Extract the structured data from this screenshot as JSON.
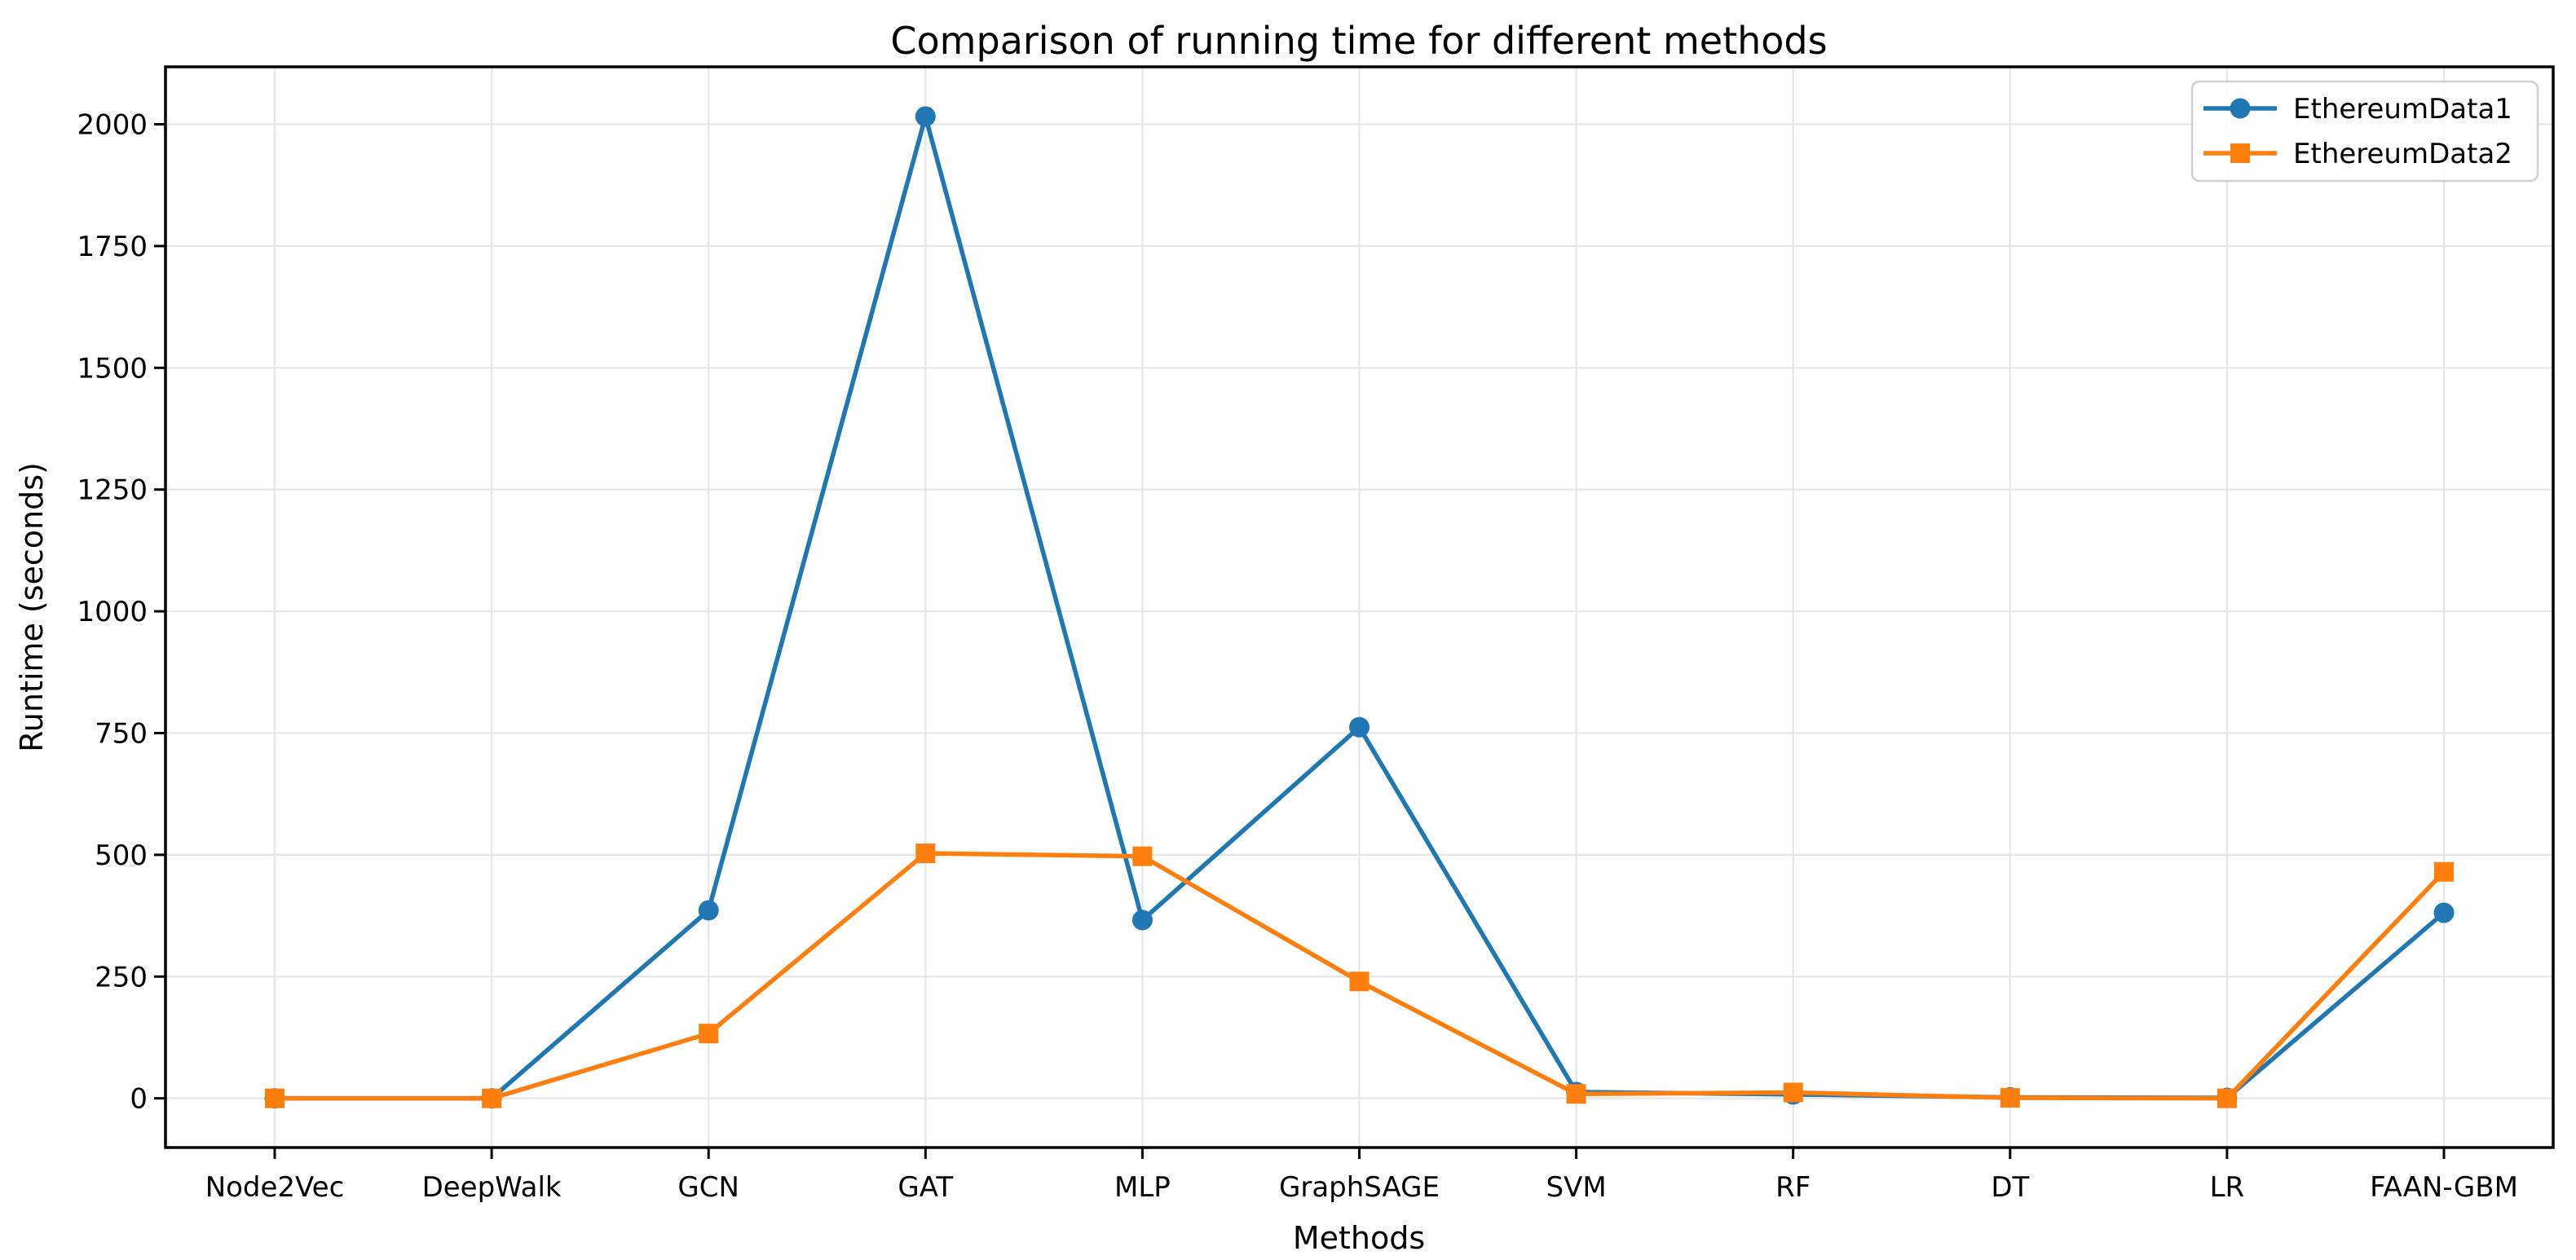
{
  "chart_data": {
    "type": "line",
    "title": "Comparison of running time for different methods",
    "xlabel": "Methods",
    "ylabel": "Runtime (seconds)",
    "categories": [
      "Node2Vec",
      "DeepWalk",
      "GCN",
      "GAT",
      "MLP",
      "GraphSAGE",
      "SVM",
      "RF",
      "DT",
      "LR",
      "FAAN-GBM"
    ],
    "series": [
      {
        "name": "EthereumData1",
        "color": "#1f77b4",
        "marker": "circle",
        "values": [
          0,
          0,
          386,
          2016,
          366,
          762,
          13,
          8,
          2,
          1,
          381
        ]
      },
      {
        "name": "EthereumData2",
        "color": "#ff7f0e",
        "marker": "square",
        "values": [
          0,
          0,
          133,
          503,
          497,
          240,
          9,
          12,
          1,
          0,
          465
        ]
      }
    ],
    "yticks": [
      0,
      250,
      500,
      750,
      1000,
      1250,
      1500,
      1750,
      2000
    ],
    "ylim": [
      -101,
      2118
    ],
    "grid": true,
    "grid_color": "#e6e6e6",
    "axis_color": "#000000",
    "background_color": "#ffffff",
    "legend_position": "upper right"
  }
}
